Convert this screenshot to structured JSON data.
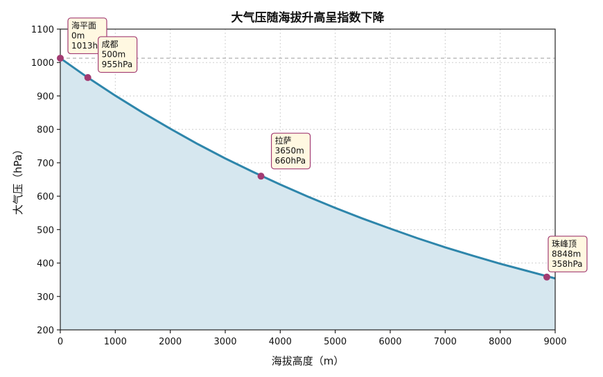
{
  "chart_data": {
    "type": "area",
    "title": "大气压随海拔升高呈指数下降",
    "xlabel": "海拔高度（m）",
    "ylabel": "大气压（hPa）",
    "xlim": [
      0,
      9000
    ],
    "ylim": [
      200,
      1100
    ],
    "x_ticks": [
      0,
      1000,
      2000,
      3000,
      4000,
      5000,
      6000,
      7000,
      8000,
      9000
    ],
    "y_ticks": [
      200,
      300,
      400,
      500,
      600,
      700,
      800,
      900,
      1000,
      1100
    ],
    "grid": true,
    "reference_line": {
      "y": 1013,
      "style": "dashed"
    },
    "series": [
      {
        "x": [
          0,
          500,
          1000,
          1500,
          2000,
          2500,
          3000,
          3500,
          4000,
          4500,
          5000,
          5500,
          6000,
          6500,
          7000,
          7500,
          8000,
          8500,
          9000
        ],
        "y": [
          1013,
          955,
          901,
          850,
          802,
          756,
          713,
          673,
          635,
          599,
          565,
          533,
          503,
          474,
          447,
          422,
          398,
          376,
          354
        ],
        "color": "#2e86ab",
        "fill": "#d6e7ef"
      }
    ],
    "points": [
      {
        "name": "海平面",
        "x": 0,
        "y": 1013,
        "label_lines": [
          "海平面",
          "0m",
          "1013hPa"
        ]
      },
      {
        "name": "成都",
        "x": 500,
        "y": 955,
        "label_lines": [
          "成都",
          "500m",
          "955hPa"
        ]
      },
      {
        "name": "拉萨",
        "x": 3650,
        "y": 660,
        "label_lines": [
          "拉萨",
          "3650m",
          "660hPa"
        ]
      },
      {
        "name": "珠峰顶",
        "x": 8848,
        "y": 358,
        "label_lines": [
          "珠峰顶",
          "8848m",
          "358hPa"
        ]
      }
    ],
    "point_color": "#a23b72"
  }
}
